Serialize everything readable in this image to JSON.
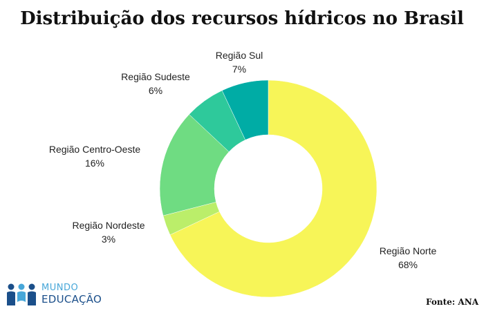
{
  "chart_data": {
    "type": "pie",
    "title": "Distribuição dos recursos hídricos no Brasil",
    "donut": true,
    "legend": "none",
    "slices": [
      {
        "label": "Região Norte",
        "value": 68,
        "value_label": "68%",
        "color": "#f7f558"
      },
      {
        "label": "Região Nordeste",
        "value": 3,
        "value_label": "3%",
        "color": "#bbee6a"
      },
      {
        "label": "Região Centro-Oeste",
        "value": 16,
        "value_label": "16%",
        "color": "#6fdc82"
      },
      {
        "label": "Região Sudeste",
        "value": 6,
        "value_label": "6%",
        "color": "#2ec99b"
      },
      {
        "label": "Região Sul",
        "value": 7,
        "value_label": "7%",
        "color": "#00aca5"
      }
    ]
  },
  "footer": {
    "source": "Fonte: ANA"
  },
  "logo": {
    "line1": "MUNDO",
    "line2": "EDUCAÇÃO",
    "icon": "people-icon",
    "colors": [
      "#47a7d9",
      "#1b4f8a"
    ]
  }
}
